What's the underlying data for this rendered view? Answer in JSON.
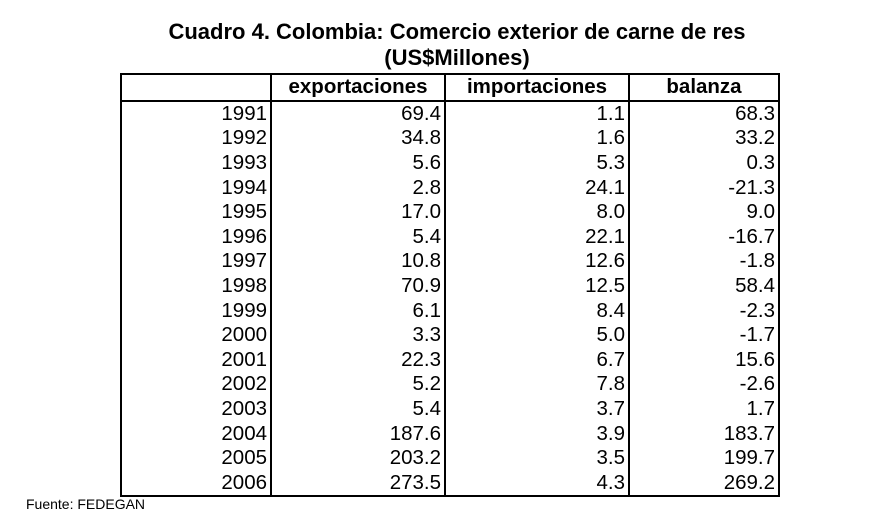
{
  "title_line1": "Cuadro 4. Colombia: Comercio exterior de carne de res",
  "title_line2": "(US$Millones)",
  "headers": {
    "year": "",
    "exports": "exportaciones",
    "imports": "importaciones",
    "balance": "balanza"
  },
  "rows": [
    {
      "year": "1991",
      "exports": "69.4",
      "imports": "1.1",
      "balance": "68.3"
    },
    {
      "year": "1992",
      "exports": "34.8",
      "imports": "1.6",
      "balance": "33.2"
    },
    {
      "year": "1993",
      "exports": "5.6",
      "imports": "5.3",
      "balance": "0.3"
    },
    {
      "year": "1994",
      "exports": "2.8",
      "imports": "24.1",
      "balance": "-21.3"
    },
    {
      "year": "1995",
      "exports": "17.0",
      "imports": "8.0",
      "balance": "9.0"
    },
    {
      "year": "1996",
      "exports": "5.4",
      "imports": "22.1",
      "balance": "-16.7"
    },
    {
      "year": "1997",
      "exports": "10.8",
      "imports": "12.6",
      "balance": "-1.8"
    },
    {
      "year": "1998",
      "exports": "70.9",
      "imports": "12.5",
      "balance": "58.4"
    },
    {
      "year": "1999",
      "exports": "6.1",
      "imports": "8.4",
      "balance": "-2.3"
    },
    {
      "year": "2000",
      "exports": "3.3",
      "imports": "5.0",
      "balance": "-1.7"
    },
    {
      "year": "2001",
      "exports": "22.3",
      "imports": "6.7",
      "balance": "15.6"
    },
    {
      "year": "2002",
      "exports": "5.2",
      "imports": "7.8",
      "balance": "-2.6"
    },
    {
      "year": "2003",
      "exports": "5.4",
      "imports": "3.7",
      "balance": "1.7"
    },
    {
      "year": "2004",
      "exports": "187.6",
      "imports": "3.9",
      "balance": "183.7"
    },
    {
      "year": "2005",
      "exports": "203.2",
      "imports": "3.5",
      "balance": "199.7"
    },
    {
      "year": "2006",
      "exports": "273.5",
      "imports": "4.3",
      "balance": "269.2"
    }
  ],
  "source": "Fuente: FEDEGAN"
}
